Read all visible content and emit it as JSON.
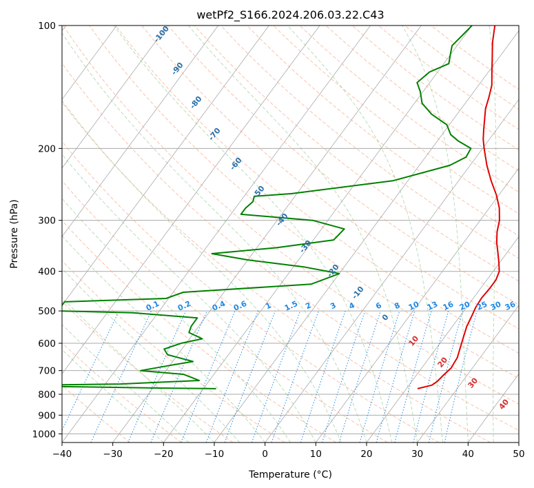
{
  "chart_data": {
    "type": "line",
    "title": "wetPf2_S166.2024.206.03.22.C43",
    "xlabel": "Temperature (°C)",
    "ylabel": "Pressure (hPa)",
    "xlim": [
      -40,
      50
    ],
    "ylim": [
      1050,
      100
    ],
    "y_scale": "log",
    "skew": true,
    "grid": true,
    "x_ticks": [
      "−40",
      "−30",
      "−20",
      "−10",
      "0",
      "10",
      "20",
      "30",
      "40",
      "50"
    ],
    "y_ticks": [
      "100",
      "200",
      "300",
      "400",
      "500",
      "600",
      "700",
      "800",
      "900",
      "1000"
    ],
    "dry_adiabat_labels": [
      "-100",
      "-90",
      "-80",
      "-70",
      "-60",
      "-50",
      "-40",
      "-30",
      "-20",
      "-10",
      "0"
    ],
    "moist_adiabat_labels": [
      "10",
      "20",
      "30",
      "40"
    ],
    "mixing_ratio_labels": [
      "0.1",
      "0.2",
      "0.4",
      "0.6",
      "1",
      "1.5",
      "2",
      "3",
      "4",
      "6",
      "8",
      "10",
      "13",
      "16",
      "20",
      "25",
      "30",
      "36"
    ],
    "series": [
      {
        "color": "#e00000",
        "points": [
          {
            "p": 775,
            "t": 22.2
          },
          {
            "p": 760,
            "t": 24.5
          },
          {
            "p": 745,
            "t": 25.0
          },
          {
            "p": 720,
            "t": 25.3
          },
          {
            "p": 690,
            "t": 25.8
          },
          {
            "p": 650,
            "t": 25.5
          },
          {
            "p": 610,
            "t": 24.5
          },
          {
            "p": 575,
            "t": 23.6
          },
          {
            "p": 545,
            "t": 22.8
          },
          {
            "p": 515,
            "t": 22.3
          },
          {
            "p": 490,
            "t": 21.8
          },
          {
            "p": 465,
            "t": 21.6
          },
          {
            "p": 440,
            "t": 21.8
          },
          {
            "p": 420,
            "t": 21.8
          },
          {
            "p": 400,
            "t": 21.2
          },
          {
            "p": 380,
            "t": 19.8
          },
          {
            "p": 360,
            "t": 18.2
          },
          {
            "p": 340,
            "t": 16.5
          },
          {
            "p": 320,
            "t": 15.0
          },
          {
            "p": 300,
            "t": 13.8
          },
          {
            "p": 280,
            "t": 12.0
          },
          {
            "p": 260,
            "t": 9.5
          },
          {
            "p": 240,
            "t": 6.4
          },
          {
            "p": 220,
            "t": 3.3
          },
          {
            "p": 200,
            "t": 0.3
          },
          {
            "p": 190,
            "t": -1.2
          },
          {
            "p": 180,
            "t": -2.5
          },
          {
            "p": 170,
            "t": -3.8
          },
          {
            "p": 160,
            "t": -5.2
          },
          {
            "p": 150,
            "t": -6.2
          },
          {
            "p": 140,
            "t": -7.4
          },
          {
            "p": 130,
            "t": -9.3
          },
          {
            "p": 120,
            "t": -11.3
          },
          {
            "p": 110,
            "t": -13.5
          },
          {
            "p": 100,
            "t": -15.5
          }
        ]
      },
      {
        "color": "#008000",
        "points": [
          {
            "p": 775,
            "t": -17.5
          },
          {
            "p": 772,
            "t": -30.0
          },
          {
            "p": 768,
            "t": -42.0
          },
          {
            "p": 762,
            "t": -60.0
          },
          {
            "p": 755,
            "t": -37.0
          },
          {
            "p": 740,
            "t": -22.0
          },
          {
            "p": 715,
            "t": -26.0
          },
          {
            "p": 700,
            "t": -35.0
          },
          {
            "p": 680,
            "t": -30.0
          },
          {
            "p": 665,
            "t": -26.0
          },
          {
            "p": 640,
            "t": -32.0
          },
          {
            "p": 620,
            "t": -33.5
          },
          {
            "p": 600,
            "t": -31.0
          },
          {
            "p": 585,
            "t": -27.5
          },
          {
            "p": 565,
            "t": -31.0
          },
          {
            "p": 545,
            "t": -31.5
          },
          {
            "p": 520,
            "t": -31.5
          },
          {
            "p": 505,
            "t": -45.0
          },
          {
            "p": 500,
            "t": -60.0
          },
          {
            "p": 475,
            "t": -60.0
          },
          {
            "p": 466,
            "t": -40.5
          },
          {
            "p": 450,
            "t": -38.0
          },
          {
            "p": 430,
            "t": -14.0
          },
          {
            "p": 405,
            "t": -10.0
          },
          {
            "p": 390,
            "t": -18.0
          },
          {
            "p": 375,
            "t": -30.0
          },
          {
            "p": 362,
            "t": -38.0
          },
          {
            "p": 350,
            "t": -26.0
          },
          {
            "p": 335,
            "t": -16.0
          },
          {
            "p": 315,
            "t": -15.5
          },
          {
            "p": 300,
            "t": -23.0
          },
          {
            "p": 290,
            "t": -38.0
          },
          {
            "p": 280,
            "t": -38.0
          },
          {
            "p": 270,
            "t": -37.5
          },
          {
            "p": 262,
            "t": -38.0
          },
          {
            "p": 258,
            "t": -31.0
          },
          {
            "p": 240,
            "t": -13.0
          },
          {
            "p": 220,
            "t": -4.0
          },
          {
            "p": 210,
            "t": -2.0
          },
          {
            "p": 200,
            "t": -2.3
          },
          {
            "p": 192,
            "t": -5.8
          },
          {
            "p": 185,
            "t": -8.3
          },
          {
            "p": 175,
            "t": -10.5
          },
          {
            "p": 165,
            "t": -15.0
          },
          {
            "p": 155,
            "t": -18.5
          },
          {
            "p": 145,
            "t": -20.6
          },
          {
            "p": 138,
            "t": -22.5
          },
          {
            "p": 130,
            "t": -21.6
          },
          {
            "p": 124,
            "t": -19.0
          },
          {
            "p": 118,
            "t": -20.0
          },
          {
            "p": 112,
            "t": -21.0
          },
          {
            "p": 106,
            "t": -20.5
          },
          {
            "p": 100,
            "t": -20.0
          }
        ]
      }
    ]
  }
}
